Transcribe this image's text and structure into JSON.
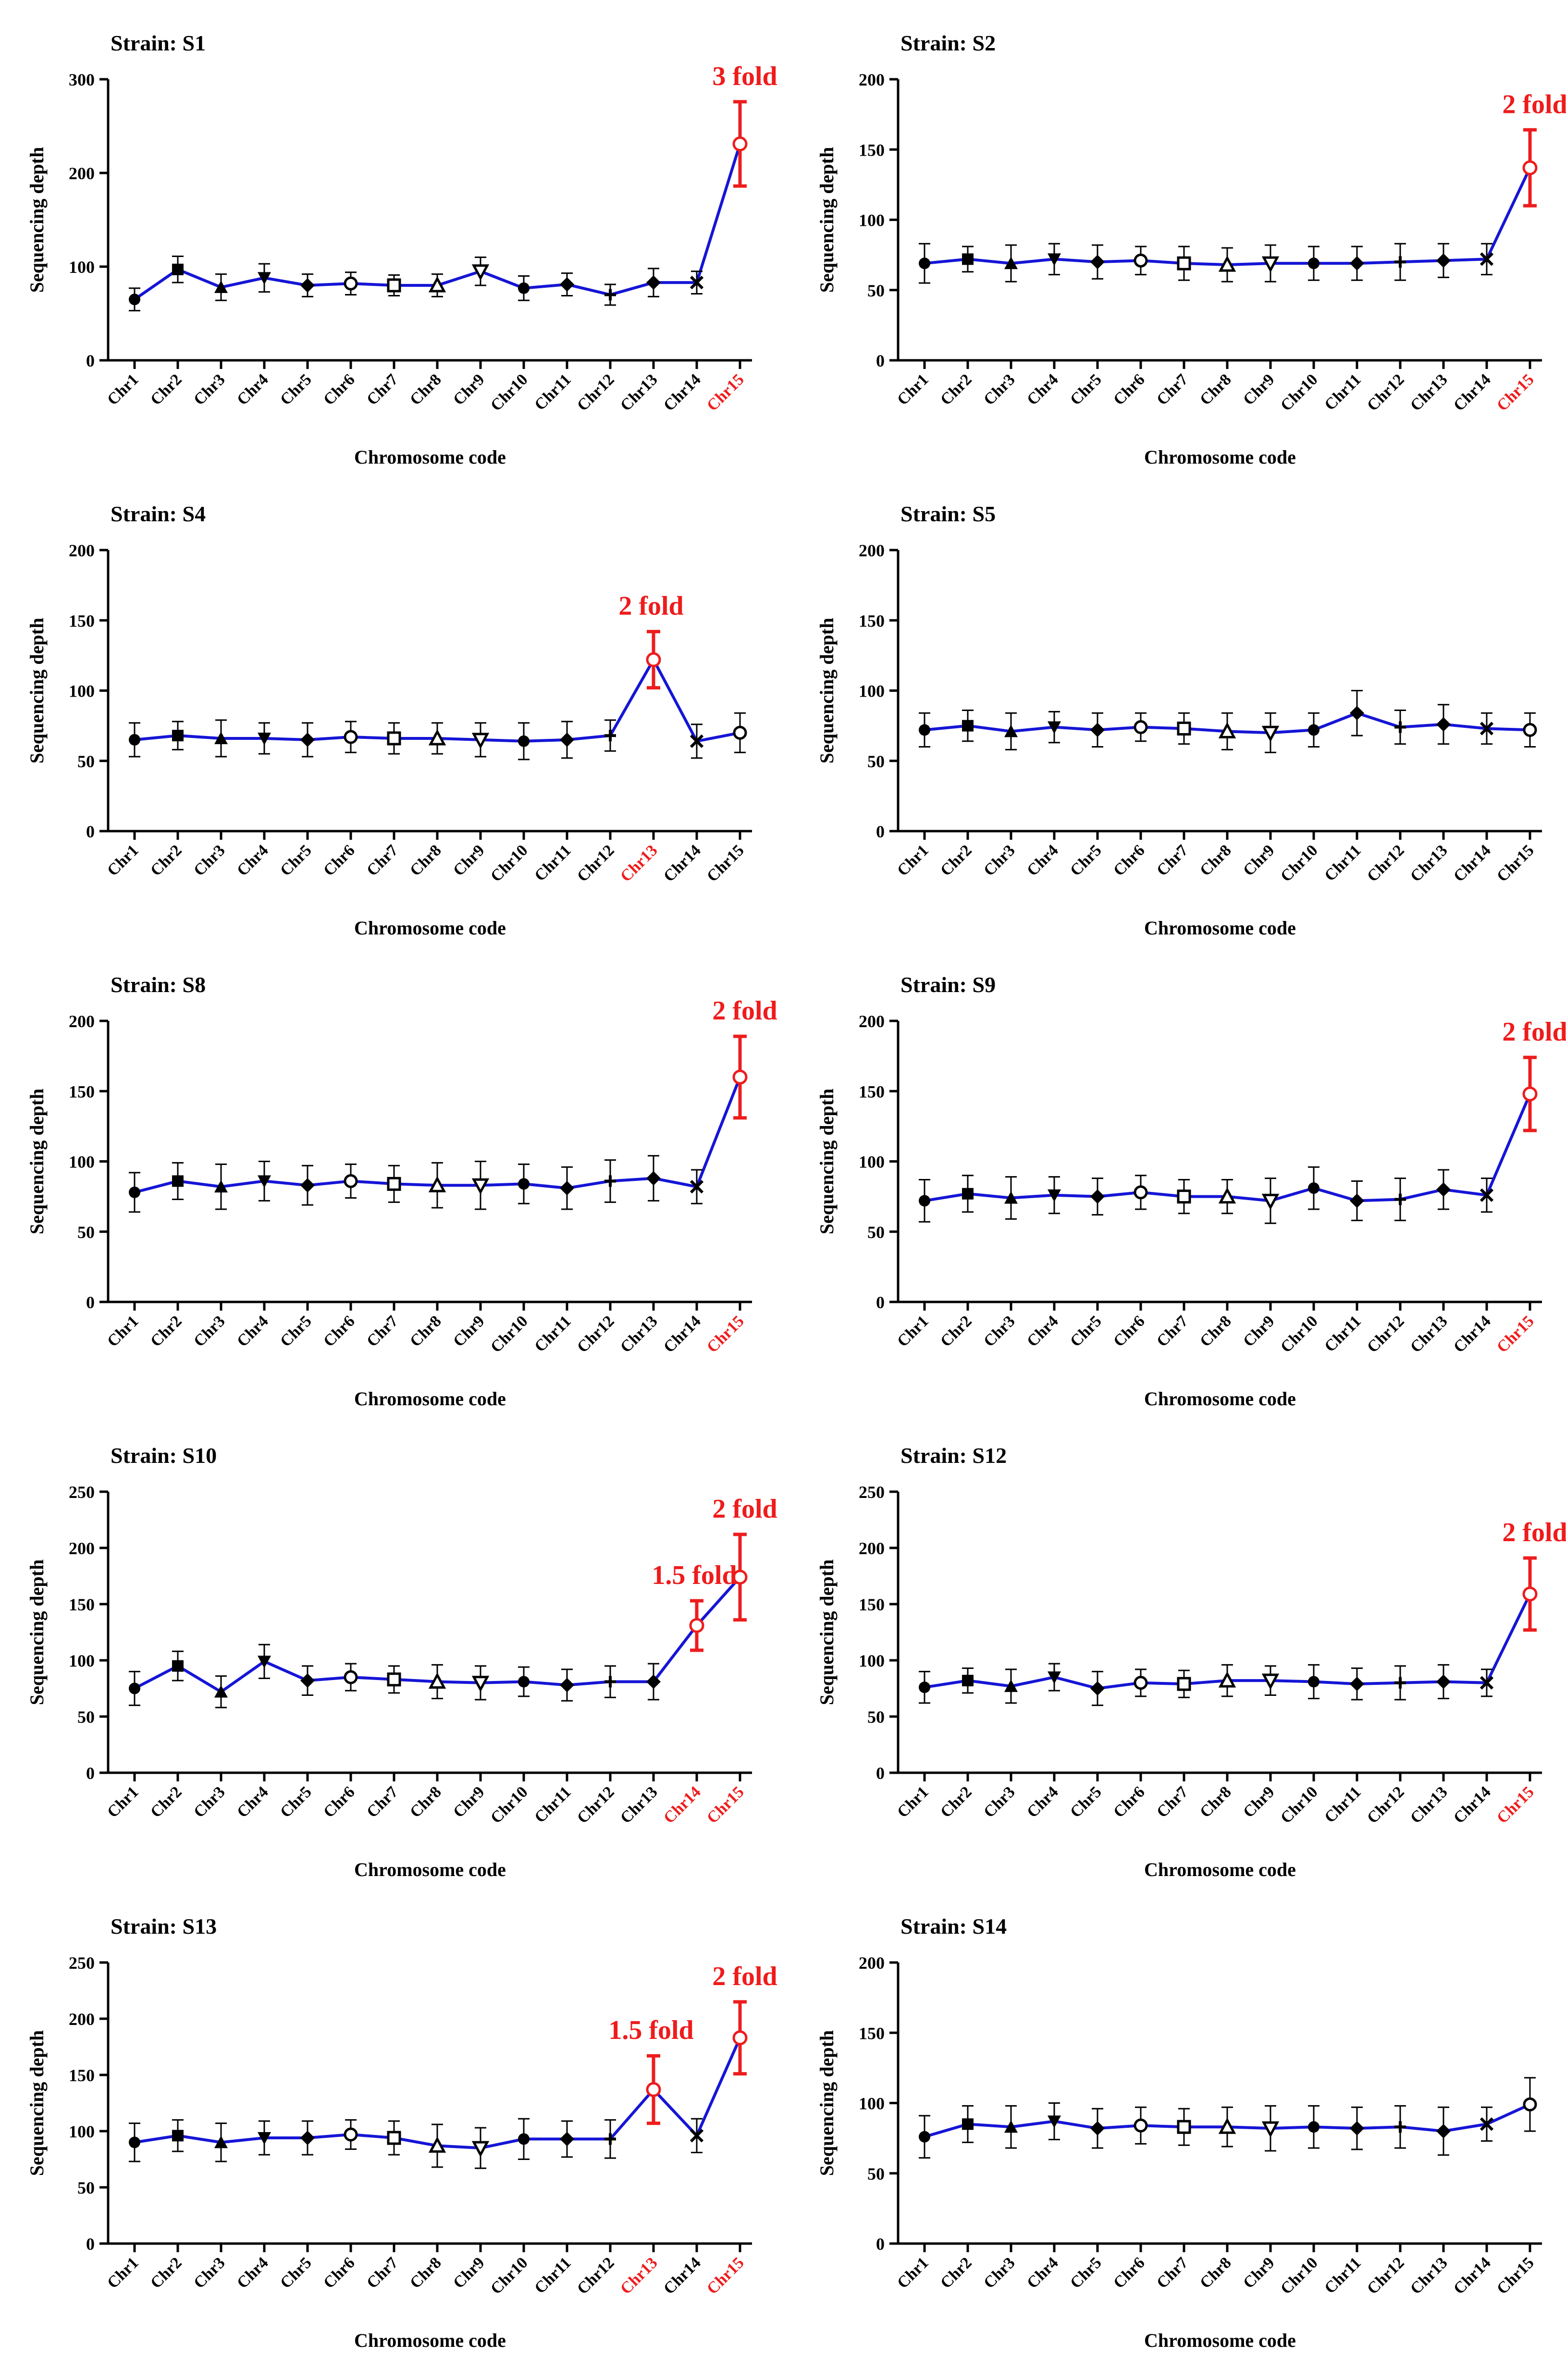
{
  "chart_data": [
    {
      "type": "line",
      "title": "Strain: S1",
      "xlabel": "Chromosome code",
      "ylabel": "Sequencing depth",
      "categories": [
        "Chr1",
        "Chr2",
        "Chr3",
        "Chr4",
        "Chr5",
        "Chr6",
        "Chr7",
        "Chr8",
        "Chr9",
        "Chr10",
        "Chr11",
        "Chr12",
        "Chr13",
        "Chr14",
        "Chr15"
      ],
      "values": [
        65,
        97,
        78,
        88,
        80,
        82,
        80,
        80,
        95,
        77,
        81,
        70,
        83,
        83,
        231
      ],
      "errors": [
        12,
        14,
        14,
        15,
        12,
        12,
        11,
        12,
        15,
        13,
        12,
        11,
        15,
        12,
        45
      ],
      "ylim": [
        0,
        300
      ],
      "yticks": [
        0,
        100,
        200,
        300
      ],
      "highlight_labels": [
        "Chr15"
      ],
      "highlight_point": 14,
      "annotations": [
        {
          "text": "3 fold",
          "category": "Chr15"
        }
      ]
    },
    {
      "type": "line",
      "title": "Strain: S2",
      "xlabel": "Chromosome code",
      "ylabel": "Sequencing depth",
      "categories": [
        "Chr1",
        "Chr2",
        "Chr3",
        "Chr4",
        "Chr5",
        "Chr6",
        "Chr7",
        "Chr8",
        "Chr9",
        "Chr10",
        "Chr11",
        "Chr12",
        "Chr13",
        "Chr14",
        "Chr15"
      ],
      "values": [
        69,
        72,
        69,
        72,
        70,
        71,
        69,
        68,
        69,
        69,
        69,
        70,
        71,
        72,
        137
      ],
      "errors": [
        14,
        9,
        13,
        11,
        12,
        10,
        12,
        12,
        13,
        12,
        12,
        13,
        12,
        11,
        27
      ],
      "ylim": [
        0,
        200
      ],
      "yticks": [
        0,
        50,
        100,
        150,
        200
      ],
      "highlight_labels": [
        "Chr15"
      ],
      "highlight_point": 14,
      "annotations": [
        {
          "text": "2 fold",
          "category": "Chr15"
        }
      ]
    },
    {
      "type": "line",
      "title": "Strain: S4",
      "xlabel": "Chromosome code",
      "ylabel": "Sequencing depth",
      "categories": [
        "Chr1",
        "Chr2",
        "Chr3",
        "Chr4",
        "Chr5",
        "Chr6",
        "Chr7",
        "Chr8",
        "Chr9",
        "Chr10",
        "Chr11",
        "Chr12",
        "Chr13",
        "Chr14",
        "Chr15"
      ],
      "values": [
        65,
        68,
        66,
        66,
        65,
        67,
        66,
        66,
        65,
        64,
        65,
        68,
        122,
        64,
        70
      ],
      "errors": [
        12,
        10,
        13,
        11,
        12,
        11,
        11,
        11,
        12,
        13,
        13,
        11,
        20,
        12,
        14
      ],
      "ylim": [
        0,
        200
      ],
      "yticks": [
        0,
        50,
        100,
        150,
        200
      ],
      "highlight_labels": [
        "Chr13"
      ],
      "highlight_point": 12,
      "annotations": [
        {
          "text": "2 fold",
          "category": "Chr13"
        }
      ]
    },
    {
      "type": "line",
      "title": "Strain: S5",
      "xlabel": "Chromosome code",
      "ylabel": "Sequencing depth",
      "categories": [
        "Chr1",
        "Chr2",
        "Chr3",
        "Chr4",
        "Chr5",
        "Chr6",
        "Chr7",
        "Chr8",
        "Chr9",
        "Chr10",
        "Chr11",
        "Chr12",
        "Chr13",
        "Chr14",
        "Chr15"
      ],
      "values": [
        72,
        75,
        71,
        74,
        72,
        74,
        73,
        71,
        70,
        72,
        84,
        74,
        76,
        73,
        72
      ],
      "errors": [
        12,
        11,
        13,
        11,
        12,
        10,
        11,
        13,
        14,
        12,
        16,
        12,
        14,
        11,
        12
      ],
      "ylim": [
        0,
        200
      ],
      "yticks": [
        0,
        50,
        100,
        150,
        200
      ],
      "highlight_labels": [],
      "highlight_point": null,
      "annotations": []
    },
    {
      "type": "line",
      "title": "Strain: S8",
      "xlabel": "Chromosome code",
      "ylabel": "Sequencing depth",
      "categories": [
        "Chr1",
        "Chr2",
        "Chr3",
        "Chr4",
        "Chr5",
        "Chr6",
        "Chr7",
        "Chr8",
        "Chr9",
        "Chr10",
        "Chr11",
        "Chr12",
        "Chr13",
        "Chr14",
        "Chr15"
      ],
      "values": [
        78,
        86,
        82,
        86,
        83,
        86,
        84,
        83,
        83,
        84,
        81,
        86,
        88,
        82,
        160
      ],
      "errors": [
        14,
        13,
        16,
        14,
        14,
        12,
        13,
        16,
        17,
        14,
        15,
        15,
        16,
        12,
        29
      ],
      "ylim": [
        0,
        200
      ],
      "yticks": [
        0,
        50,
        100,
        150,
        200
      ],
      "highlight_labels": [
        "Chr15"
      ],
      "highlight_point": 14,
      "annotations": [
        {
          "text": "2 fold",
          "category": "Chr15"
        }
      ]
    },
    {
      "type": "line",
      "title": "Strain: S9",
      "xlabel": "Chromosome code",
      "ylabel": "Sequencing depth",
      "categories": [
        "Chr1",
        "Chr2",
        "Chr3",
        "Chr4",
        "Chr5",
        "Chr6",
        "Chr7",
        "Chr8",
        "Chr9",
        "Chr10",
        "Chr11",
        "Chr12",
        "Chr13",
        "Chr14",
        "Chr15"
      ],
      "values": [
        72,
        77,
        74,
        76,
        75,
        78,
        75,
        75,
        72,
        81,
        72,
        73,
        80,
        76,
        148
      ],
      "errors": [
        15,
        13,
        15,
        13,
        13,
        12,
        12,
        12,
        16,
        15,
        14,
        15,
        14,
        12,
        26
      ],
      "ylim": [
        0,
        200
      ],
      "yticks": [
        0,
        50,
        100,
        150,
        200
      ],
      "highlight_labels": [
        "Chr15"
      ],
      "highlight_point": 14,
      "annotations": [
        {
          "text": "2 fold",
          "category": "Chr15"
        }
      ]
    },
    {
      "type": "line",
      "title": "Strain: S10",
      "xlabel": "Chromosome code",
      "ylabel": "Sequencing depth",
      "categories": [
        "Chr1",
        "Chr2",
        "Chr3",
        "Chr4",
        "Chr5",
        "Chr6",
        "Chr7",
        "Chr8",
        "Chr9",
        "Chr10",
        "Chr11",
        "Chr12",
        "Chr13",
        "Chr14",
        "Chr15"
      ],
      "values": [
        75,
        95,
        72,
        99,
        82,
        85,
        83,
        81,
        80,
        81,
        78,
        81,
        81,
        131,
        174
      ],
      "errors": [
        15,
        13,
        14,
        15,
        13,
        12,
        12,
        15,
        15,
        13,
        14,
        14,
        16,
        22,
        38
      ],
      "ylim": [
        0,
        250
      ],
      "yticks": [
        0,
        50,
        100,
        150,
        200,
        250
      ],
      "highlight_labels": [
        "Chr14",
        "Chr15"
      ],
      "highlight_point": 14,
      "highlight_point2": 13,
      "annotations": [
        {
          "text": "2 fold",
          "category": "Chr15"
        },
        {
          "text": "1.5 fold",
          "category": "Chr14"
        }
      ]
    },
    {
      "type": "line",
      "title": "Strain: S12",
      "xlabel": "Chromosome code",
      "ylabel": "Sequencing depth",
      "categories": [
        "Chr1",
        "Chr2",
        "Chr3",
        "Chr4",
        "Chr5",
        "Chr6",
        "Chr7",
        "Chr8",
        "Chr9",
        "Chr10",
        "Chr11",
        "Chr12",
        "Chr13",
        "Chr14",
        "Chr15"
      ],
      "values": [
        76,
        82,
        77,
        85,
        75,
        80,
        79,
        82,
        82,
        81,
        79,
        80,
        81,
        80,
        159
      ],
      "errors": [
        14,
        11,
        15,
        12,
        15,
        12,
        12,
        14,
        13,
        15,
        14,
        15,
        15,
        12,
        32
      ],
      "ylim": [
        0,
        250
      ],
      "yticks": [
        0,
        50,
        100,
        150,
        200,
        250
      ],
      "highlight_labels": [
        "Chr15"
      ],
      "highlight_point": 14,
      "annotations": [
        {
          "text": "2 fold",
          "category": "Chr15"
        }
      ]
    },
    {
      "type": "line",
      "title": "Strain: S13",
      "xlabel": "Chromosome code",
      "ylabel": "Sequencing depth",
      "categories": [
        "Chr1",
        "Chr2",
        "Chr3",
        "Chr4",
        "Chr5",
        "Chr6",
        "Chr7",
        "Chr8",
        "Chr9",
        "Chr10",
        "Chr11",
        "Chr12",
        "Chr13",
        "Chr14",
        "Chr15"
      ],
      "values": [
        90,
        96,
        90,
        94,
        94,
        97,
        94,
        87,
        85,
        93,
        93,
        93,
        137,
        96,
        183
      ],
      "errors": [
        17,
        14,
        17,
        15,
        15,
        13,
        15,
        19,
        18,
        18,
        16,
        17,
        30,
        15,
        32
      ],
      "ylim": [
        0,
        250
      ],
      "yticks": [
        0,
        50,
        100,
        150,
        200,
        250
      ],
      "highlight_labels": [
        "Chr13",
        "Chr15"
      ],
      "highlight_point": 14,
      "highlight_point2": 12,
      "annotations": [
        {
          "text": "2 fold",
          "category": "Chr15"
        },
        {
          "text": "1.5 fold",
          "category": "Chr13"
        }
      ]
    },
    {
      "type": "line",
      "title": "Strain: S14",
      "xlabel": "Chromosome code",
      "ylabel": "Sequencing depth",
      "categories": [
        "Chr1",
        "Chr2",
        "Chr3",
        "Chr4",
        "Chr5",
        "Chr6",
        "Chr7",
        "Chr8",
        "Chr9",
        "Chr10",
        "Chr11",
        "Chr12",
        "Chr13",
        "Chr14",
        "Chr15"
      ],
      "values": [
        76,
        85,
        83,
        87,
        82,
        84,
        83,
        83,
        82,
        83,
        82,
        83,
        80,
        85,
        99
      ],
      "errors": [
        15,
        13,
        15,
        13,
        14,
        13,
        13,
        14,
        16,
        15,
        15,
        15,
        17,
        12,
        19
      ],
      "ylim": [
        0,
        200
      ],
      "yticks": [
        0,
        50,
        100,
        150,
        200
      ],
      "highlight_labels": [],
      "highlight_point": null,
      "annotations": []
    }
  ],
  "colors": {
    "line": "#1515d6",
    "highlight": "#ee1c1c",
    "axis": "#000000",
    "marker": "#000000"
  }
}
